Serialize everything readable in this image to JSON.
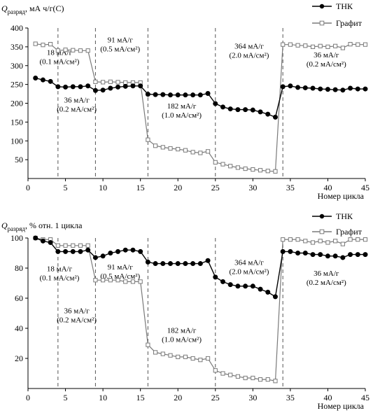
{
  "chart_data": [
    {
      "type": "line",
      "ylabel_main": "Q",
      "ylabel_sub": "разряд",
      "ylabel_rest": ", мА ч/г(С)",
      "xlabel": "Номер цикла",
      "xlim": [
        0,
        45
      ],
      "ylim": [
        0,
        400
      ],
      "xticks": [
        0,
        5,
        10,
        15,
        20,
        25,
        30,
        35,
        40,
        45
      ],
      "yticks": [
        50,
        100,
        150,
        200,
        250,
        300,
        350,
        400
      ],
      "vlines": [
        4,
        9,
        16,
        25,
        34
      ],
      "legend_position": "top-right",
      "series": [
        {
          "name": "ТНК",
          "marker": "filled-circle",
          "color": "#000000",
          "x": [
            1,
            2,
            3,
            4,
            5,
            6,
            7,
            8,
            9,
            10,
            11,
            12,
            13,
            14,
            15,
            16,
            17,
            18,
            19,
            20,
            21,
            22,
            23,
            24,
            25,
            26,
            27,
            28,
            29,
            30,
            31,
            32,
            33,
            34,
            35,
            36,
            37,
            38,
            39,
            40,
            41,
            42,
            43,
            44,
            45
          ],
          "values": [
            267,
            262,
            258,
            244,
            243,
            244,
            244,
            246,
            234,
            235,
            240,
            243,
            245,
            246,
            246,
            224,
            223,
            223,
            222,
            222,
            222,
            222,
            222,
            226,
            199,
            190,
            185,
            183,
            183,
            182,
            177,
            171,
            163,
            244,
            246,
            242,
            241,
            240,
            238,
            237,
            236,
            235,
            240,
            238,
            238
          ]
        },
        {
          "name": "Графит",
          "marker": "open-square",
          "color": "#7a7a7a",
          "x": [
            1,
            2,
            3,
            4,
            5,
            6,
            7,
            8,
            9,
            10,
            11,
            12,
            13,
            14,
            15,
            16,
            17,
            18,
            19,
            20,
            21,
            22,
            23,
            24,
            25,
            26,
            27,
            28,
            29,
            30,
            31,
            32,
            33,
            34,
            35,
            36,
            37,
            38,
            39,
            40,
            41,
            42,
            43,
            44,
            45
          ],
          "values": [
            358,
            355,
            357,
            340,
            342,
            341,
            340,
            340,
            257,
            256,
            257,
            256,
            255,
            255,
            255,
            103,
            87,
            83,
            80,
            78,
            75,
            70,
            68,
            72,
            43,
            38,
            33,
            29,
            26,
            24,
            22,
            20,
            19,
            356,
            356,
            354,
            353,
            350,
            352,
            350,
            352,
            347,
            357,
            356,
            356
          ]
        }
      ],
      "annotations": [
        {
          "lines": [
            "18 мА/г",
            "(0.1 мА/см²)"
          ],
          "x": 4.2,
          "y": 328
        },
        {
          "lines": [
            "91 мА/г",
            "(0.5 мА/см²)"
          ],
          "x": 12.3,
          "y": 362
        },
        {
          "lines": [
            "364 мА/г",
            "(2.0 мА/см²)"
          ],
          "x": 29.5,
          "y": 345
        },
        {
          "lines": [
            "36 мА/г",
            "(0.2 мА/см²)"
          ],
          "x": 39.8,
          "y": 322
        },
        {
          "lines": [
            "36 мА/г",
            "(0.2 мА/см²)"
          ],
          "x": 6.5,
          "y": 202
        },
        {
          "lines": [
            "182 мА/г",
            "(1.0 мА/см²)"
          ],
          "x": 20.5,
          "y": 186
        }
      ]
    },
    {
      "type": "line",
      "ylabel_main": "Q",
      "ylabel_sub": "разряд",
      "ylabel_rest": ", % отн. 1 цикла",
      "xlabel": "Номер цикла",
      "xlim": [
        0,
        45
      ],
      "ylim": [
        0,
        100
      ],
      "xticks": [
        0,
        5,
        10,
        15,
        20,
        25,
        30,
        35,
        40,
        45
      ],
      "yticks": [
        20,
        40,
        60,
        80,
        100
      ],
      "vlines": [
        4,
        9,
        16,
        25,
        34
      ],
      "legend_position": "top-right",
      "series": [
        {
          "name": "ТНК",
          "marker": "filled-circle",
          "color": "#000000",
          "x": [
            1,
            2,
            3,
            4,
            5,
            6,
            7,
            8,
            9,
            10,
            11,
            12,
            13,
            14,
            15,
            16,
            17,
            18,
            19,
            20,
            21,
            22,
            23,
            24,
            25,
            26,
            27,
            28,
            29,
            30,
            31,
            32,
            33,
            34,
            35,
            36,
            37,
            38,
            39,
            40,
            41,
            42,
            43,
            44,
            45
          ],
          "values": [
            100,
            98,
            97,
            91,
            91,
            91,
            91,
            92,
            87,
            88,
            90,
            91,
            92,
            92,
            91,
            84,
            83,
            83,
            83,
            83,
            83,
            83,
            83,
            85,
            74,
            71,
            69,
            68,
            68,
            68,
            66,
            64,
            61,
            91,
            91,
            90,
            90,
            89,
            89,
            88,
            88,
            87,
            89,
            89,
            89
          ]
        },
        {
          "name": "Графит",
          "marker": "open-square",
          "color": "#7a7a7a",
          "x": [
            1,
            2,
            3,
            4,
            5,
            6,
            7,
            8,
            9,
            10,
            11,
            12,
            13,
            14,
            15,
            16,
            17,
            18,
            19,
            20,
            21,
            22,
            23,
            24,
            25,
            26,
            27,
            28,
            29,
            30,
            31,
            32,
            33,
            34,
            35,
            36,
            37,
            38,
            39,
            40,
            41,
            42,
            43,
            44,
            45
          ],
          "values": [
            100,
            99,
            99,
            95,
            95,
            95,
            95,
            95,
            72,
            72,
            72,
            72,
            71,
            71,
            71,
            29,
            24,
            23,
            22,
            21,
            21,
            20,
            19,
            20,
            12,
            10,
            9,
            8,
            7,
            7,
            6,
            6,
            5,
            99,
            99,
            99,
            98,
            97,
            98,
            97,
            98,
            96,
            99,
            99,
            99
          ]
        }
      ],
      "annotations": [
        {
          "lines": [
            "18 мА/г",
            "(0.1 мА/см²)"
          ],
          "x": 4.2,
          "y": 78
        },
        {
          "lines": [
            "91 мА/г",
            "(0.5 мА/см²)"
          ],
          "x": 12.3,
          "y": 79
        },
        {
          "lines": [
            "364 мА/г",
            "(2.0 мА/см²)"
          ],
          "x": 29.5,
          "y": 82
        },
        {
          "lines": [
            "36 мА/г",
            "(0.2 мА/см²)"
          ],
          "x": 39.8,
          "y": 75
        },
        {
          "lines": [
            "36 мА/г",
            "(0.2 мА/см²)"
          ],
          "x": 6.5,
          "y": 50
        },
        {
          "lines": [
            "182 мА/г",
            "(1.0 мА/см²)"
          ],
          "x": 20.5,
          "y": 37
        }
      ]
    }
  ]
}
